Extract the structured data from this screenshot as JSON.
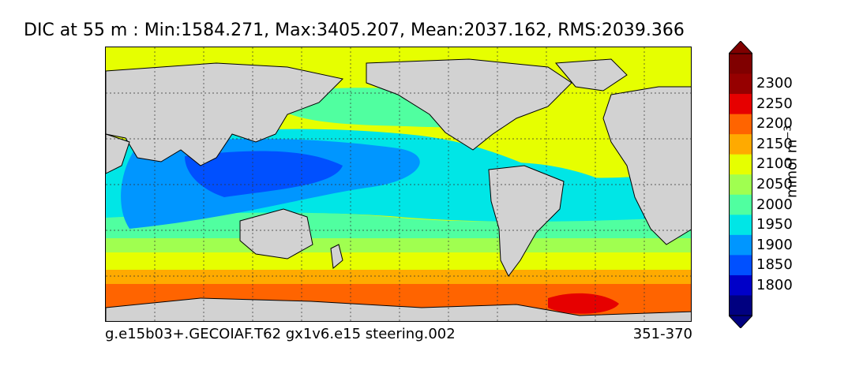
{
  "title": "DIC at 55 m : Min:1584.271, Max:3405.207, Mean:2037.162, RMS:2039.366",
  "footer": {
    "case_name": "g.e15b03+.GECOIAF.T62 gx1v6.e15 steering.002",
    "years": "351-370"
  },
  "colorbar": {
    "unit_base": "mmol m",
    "unit_exp": "−3",
    "levels": [
      {
        "label": "1800",
        "color": "#0000c8"
      },
      {
        "label": "1850",
        "color": "#0050ff"
      },
      {
        "label": "1900",
        "color": "#0096ff"
      },
      {
        "label": "1950",
        "color": "#00e6e6"
      },
      {
        "label": "2000",
        "color": "#50ffa0"
      },
      {
        "label": "2050",
        "color": "#a0ff50"
      },
      {
        "label": "2100",
        "color": "#e6ff00"
      },
      {
        "label": "2150",
        "color": "#ffaa00"
      },
      {
        "label": "2200",
        "color": "#ff6400"
      },
      {
        "label": "2250",
        "color": "#e60000"
      },
      {
        "label": "2300",
        "color": "#960000"
      }
    ],
    "under_color": "#000080",
    "over_color": "#800000"
  },
  "land_color": "#d2d2d2"
}
